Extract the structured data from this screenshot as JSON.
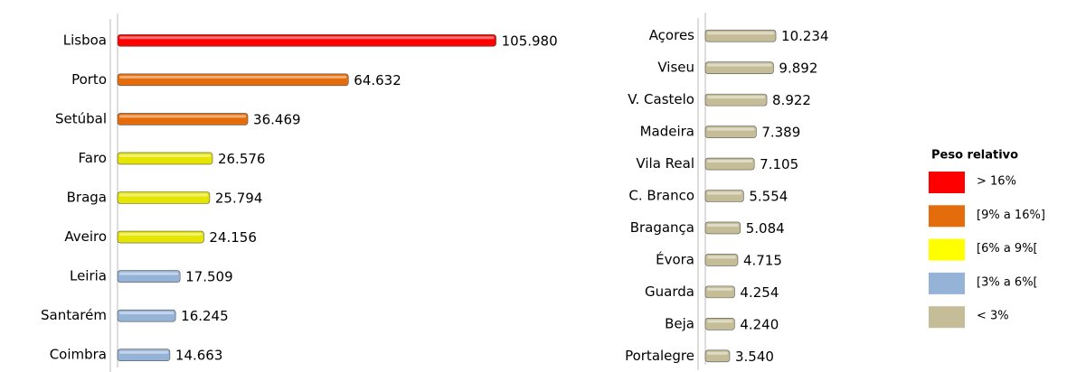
{
  "chart_data": [
    {
      "type": "bar",
      "orientation": "horizontal",
      "categories": [
        "Lisboa",
        "Porto",
        "Setúbal",
        "Faro",
        "Braga",
        "Aveiro",
        "Leiria",
        "Santarém",
        "Coimbra"
      ],
      "values": [
        105980,
        64632,
        36469,
        26576,
        25794,
        24156,
        17509,
        16245,
        14663
      ],
      "value_labels": [
        "105.980",
        "64.632",
        "36.469",
        "26.576",
        "25.794",
        "24.156",
        "17.509",
        "16.245",
        "14.663"
      ],
      "colors": [
        "#ff0000",
        "#e46c0a",
        "#e46c0a",
        "#e5e500",
        "#e5e500",
        "#e5e500",
        "#95b3d7",
        "#95b3d7",
        "#95b3d7"
      ],
      "xlim": [
        0,
        120000
      ]
    },
    {
      "type": "bar",
      "orientation": "horizontal",
      "categories": [
        "Açores",
        "Viseu",
        "V. Castelo",
        "Madeira",
        "Vila Real",
        "C. Branco",
        "Bragança",
        "Évora",
        "Guarda",
        "Beja",
        "Portalegre"
      ],
      "values": [
        10234,
        9892,
        8922,
        7389,
        7105,
        5554,
        5084,
        4715,
        4254,
        4240,
        3540
      ],
      "value_labels": [
        "10.234",
        "9.892",
        "8.922",
        "7.389",
        "7.105",
        "5.554",
        "5.084",
        "4.715",
        "4.254",
        "4.240",
        "3.540"
      ],
      "colors": [
        "#c4bd97",
        "#c4bd97",
        "#c4bd97",
        "#c4bd97",
        "#c4bd97",
        "#c4bd97",
        "#c4bd97",
        "#c4bd97",
        "#c4bd97",
        "#c4bd97",
        "#c4bd97"
      ],
      "xlim": [
        0,
        12000
      ]
    }
  ],
  "legend": {
    "title": "Peso relativo",
    "entries": [
      {
        "label": "> 16%",
        "color": "#ff0000"
      },
      {
        "label": "[9% a 16%]",
        "color": "#e46c0a"
      },
      {
        "label": " [6% a 9%[",
        "color": "#ffff00"
      },
      {
        "label": "[3% a 6%[",
        "color": "#95b3d7"
      },
      {
        "label": "< 3%",
        "color": "#c4bd97"
      }
    ]
  }
}
